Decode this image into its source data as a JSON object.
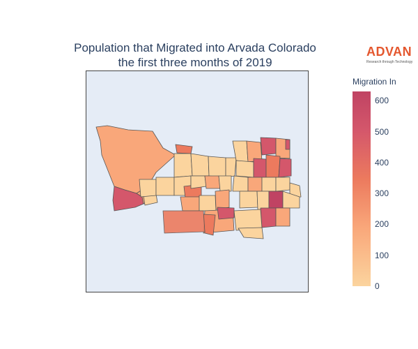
{
  "title": {
    "line1": "Population that Migrated into Arvada Colorado",
    "line2": "the first three months of 2019"
  },
  "logo": {
    "word": "ADVAN",
    "tagline": "Research through Technology",
    "color": "#e4572e"
  },
  "colorbar": {
    "title": "Migration In",
    "ticks": [
      "600",
      "500",
      "400",
      "300",
      "200",
      "100",
      "0"
    ],
    "range": [
      0,
      630
    ],
    "colorscale": [
      "#fbd49e",
      "#f9a77a",
      "#ec7a5e",
      "#d4576b",
      "#c04363"
    ]
  },
  "map": {
    "background": "#e5ecf6",
    "region_count": 60
  }
}
